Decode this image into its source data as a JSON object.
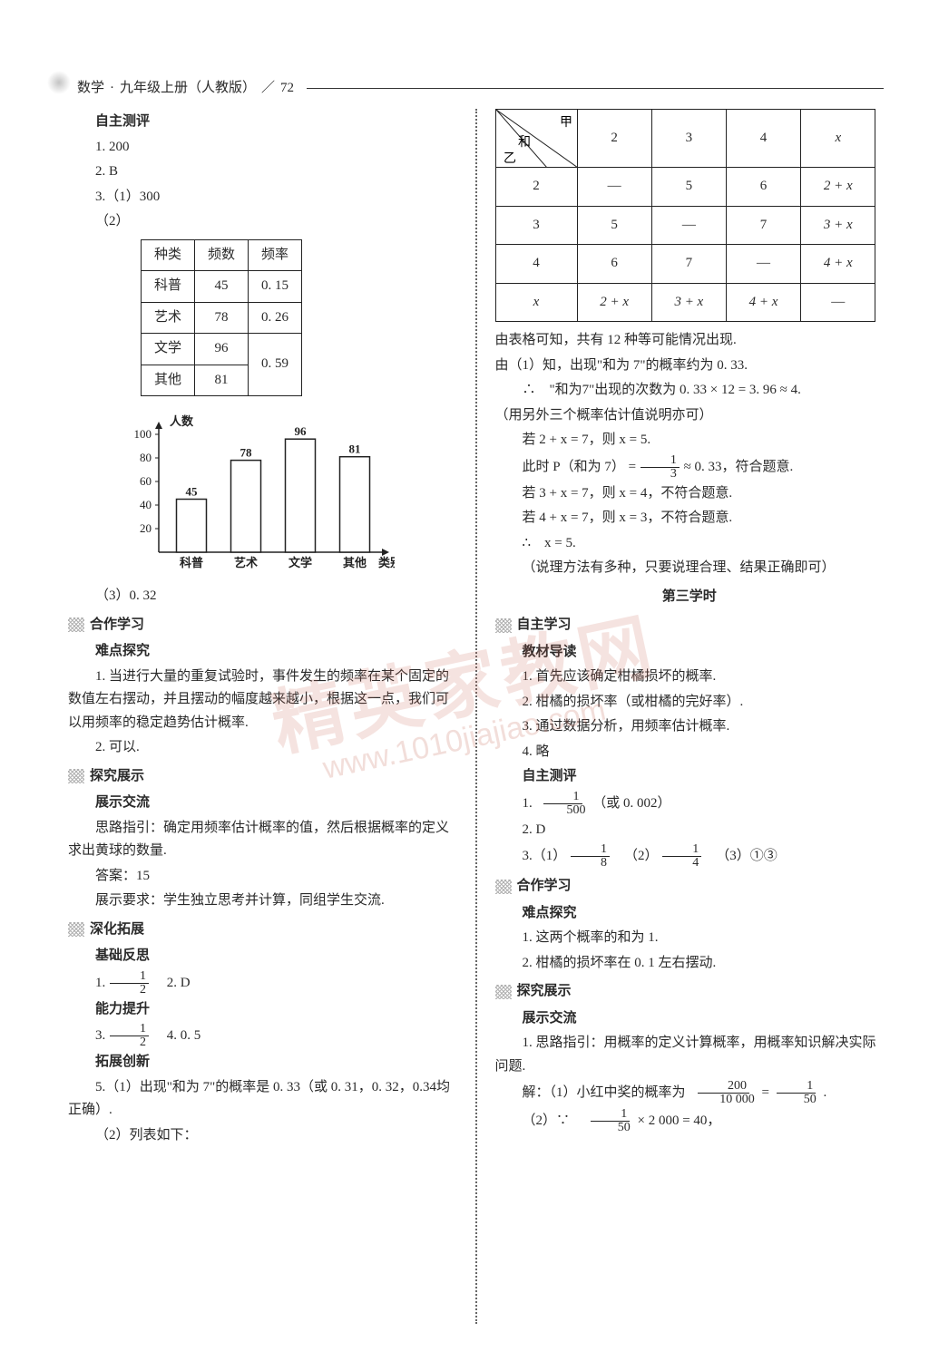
{
  "header": {
    "subject": "数学",
    "dot": "·",
    "grade": "九年级上册（人教版）",
    "slash": "／",
    "page": "72"
  },
  "watermark": {
    "big": "精英家教网",
    "url": "www.1010jiajiao.com"
  },
  "left": {
    "t_autoeval": "自主测评",
    "a1": "1. 200",
    "a2": "2. B",
    "a3": "3.（1）300",
    "a3b": "（2）",
    "freq_table": {
      "headers": [
        "种类",
        "频数",
        "频率"
      ],
      "rows_text": [
        [
          "科普",
          "45",
          "0. 15"
        ],
        [
          "艺术",
          "78",
          "0. 26"
        ],
        [
          "文学",
          "96",
          ""
        ],
        [
          "其他",
          "81",
          ""
        ]
      ],
      "merged_rate": "0. 59"
    },
    "chart": {
      "ylabel": "人数",
      "xlabel": "类别",
      "ymax": 100,
      "ytick_step": 20,
      "yticks": [
        "100",
        "80",
        "60",
        "40",
        "20"
      ],
      "categories": [
        "科普",
        "艺术",
        "文学",
        "其他"
      ],
      "values": [
        45,
        78,
        96,
        81
      ],
      "value_labels": [
        "45",
        "78",
        "96",
        "81"
      ],
      "bar_fill": "#ffffff",
      "bar_stroke": "#222222",
      "axis_color": "#222222",
      "font_size": 13
    },
    "a3c": "（3）0. 32",
    "s_coop": "合作学习",
    "t_diff": "难点探究",
    "diff1": "1. 当进行大量的重复试验时，事件发生的频率在某个固定的数值左右摆动，并且摆动的幅度越来越小，根据这一点，我们可以用频率的稳定趋势估计概率.",
    "diff2": "2. 可以.",
    "s_explore": "探究展示",
    "t_show": "展示交流",
    "show1": "思路指引：确定用频率估计概率的值，然后根据概率的定义求出黄球的数量.",
    "show2": "答案：15",
    "show3": "展示要求：学生独立思考并计算，同组学生交流.",
    "s_deep": "深化拓展",
    "t_basic": "基础反思",
    "b1a": "1. ",
    "b1frac": {
      "n": "1",
      "d": "2"
    },
    "b2": "2. D",
    "t_ability": "能力提升",
    "ab3a": "3. ",
    "ab3frac": {
      "n": "1",
      "d": "2"
    },
    "ab4": "4. 0. 5",
    "t_ext": "拓展创新",
    "ext5a": "5.（1）出现\"和为 7\"的概率是 0. 33（或 0. 31，0. 32，0.34均正确）.",
    "ext5b": "（2）列表如下："
  },
  "right": {
    "sum_table": {
      "corner": {
        "top": "甲",
        "left": "乙",
        "mid": "和"
      },
      "col_heads": [
        "2",
        "3",
        "4",
        "x"
      ],
      "row_heads": [
        "2",
        "3",
        "4",
        "x"
      ],
      "cells": [
        [
          "—",
          "5",
          "6",
          "2 + x"
        ],
        [
          "5",
          "—",
          "7",
          "3 + x"
        ],
        [
          "6",
          "7",
          "—",
          "4 + x"
        ],
        [
          "2 + x",
          "3 + x",
          "4 + x",
          "—"
        ]
      ]
    },
    "l1": "由表格可知，共有 12 种等可能情况出现.",
    "l2": "由（1）知，出现\"和为 7\"的概率约为 0. 33.",
    "l3": "∴　\"和为7\"出现的次数为 0. 33 × 12 = 3. 96 ≈ 4.",
    "l4": "（用另外三个概率估计值说明亦可）",
    "l5": "若 2 + x = 7，则 x = 5.",
    "l6a": "此时 P（和为 7） = ",
    "l6frac": {
      "n": "1",
      "d": "3"
    },
    "l6b": " ≈ 0. 33，符合题意.",
    "l7": "若 3 + x = 7，则 x = 4，不符合题意.",
    "l8": "若 4 + x = 7，则 x = 3，不符合题意.",
    "l9": "∴　x = 5.",
    "l10": "（说理方法有多种，只要说理合理、结果正确即可）",
    "lesson3": "第三学时",
    "s_self": "自主学习",
    "t_textbook": "教材导读",
    "tb1": "1. 首先应该确定柑橘损坏的概率.",
    "tb2": "2. 柑橘的损坏率（或柑橘的完好率）.",
    "tb3": "3. 通过数据分析，用频率估计概率.",
    "tb4": "4. 略",
    "t_autoeval": "自主测评",
    "se1a": "1. ",
    "se1frac": {
      "n": "1",
      "d": "500"
    },
    "se1b": "（或 0. 002）",
    "se2": "2. D",
    "se3a": "3.（1）",
    "se3f1": {
      "n": "1",
      "d": "8"
    },
    "se3b": "（2）",
    "se3f2": {
      "n": "1",
      "d": "4"
    },
    "se3c": "（3）①③",
    "s_coop": "合作学习",
    "t_diff": "难点探究",
    "d1": "1. 这两个概率的和为 1.",
    "d2": "2. 柑橘的损坏率在 0. 1 左右摆动.",
    "s_explore": "探究展示",
    "t_show": "展示交流",
    "sh1": "1. 思路指引：用概率的定义计算概率，用概率知识解决实际问题.",
    "sh2a": "解：（1）小红中奖的概率为",
    "sh2f1": {
      "n": "200",
      "d": "10 000"
    },
    "sh2eq": " = ",
    "sh2f2": {
      "n": "1",
      "d": "50"
    },
    "sh2b": ".",
    "sh3a": "（2）∵　",
    "sh3f": {
      "n": "1",
      "d": "50"
    },
    "sh3b": " × 2 000 = 40，"
  }
}
